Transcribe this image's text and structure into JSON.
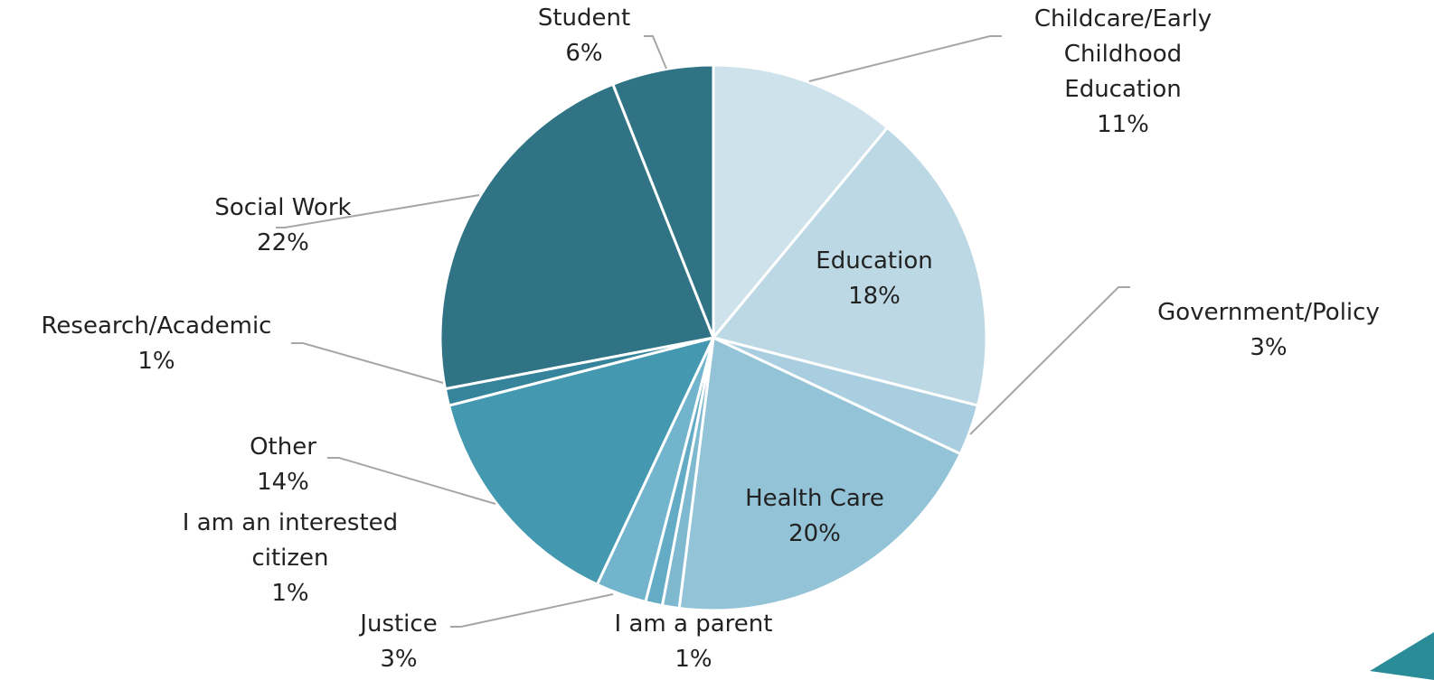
{
  "chart_data": {
    "type": "pie",
    "categories": [
      "Childcare/Early Childhood Education",
      "Education",
      "Government/Policy",
      "Health Care",
      "I am a parent",
      "I am an interested citizen",
      "Justice",
      "Other",
      "Research/Academic",
      "Social Work",
      "Student"
    ],
    "values": [
      11,
      18,
      3,
      20,
      1,
      1,
      3,
      14,
      1,
      22,
      6
    ],
    "value_labels": [
      "11%",
      "18%",
      "3%",
      "20%",
      "1%",
      "1%",
      "3%",
      "14%",
      "1%",
      "22%",
      "6%"
    ],
    "colors": [
      "#cde2ea",
      "#bcd8e4",
      "#a9cee0",
      "#93c3d6",
      "#7fb9cf",
      "#64abc5",
      "#72b4cc",
      "#4499b0",
      "#35849c",
      "#2f7384",
      "#2f7384"
    ]
  }
}
